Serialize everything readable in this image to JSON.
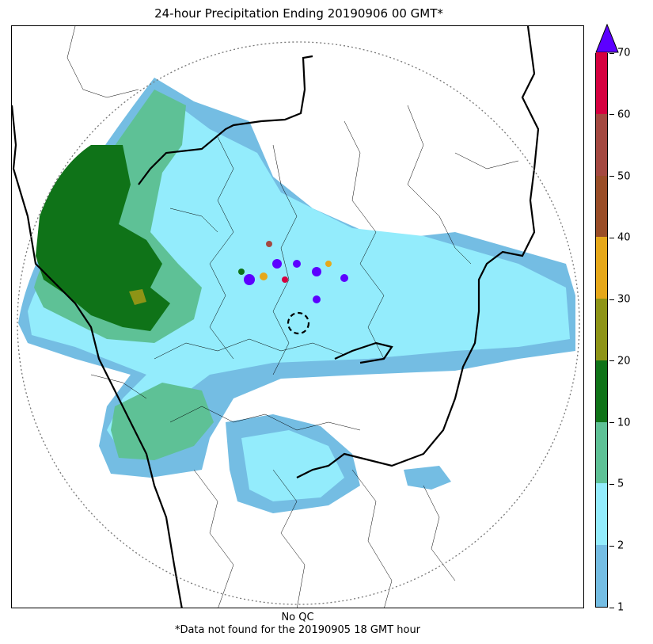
{
  "title": "24-hour Precipitation Ending 20190906 00 GMT*",
  "footer": {
    "line1": "No QC",
    "line2": "*Data not found for the 20190905 18 GMT hour"
  },
  "colorbar": {
    "ticks": [
      "1",
      "2",
      "5",
      "10",
      "20",
      "30",
      "40",
      "50",
      "60",
      "70"
    ],
    "colors": [
      "#74bde3",
      "#93ecfc",
      "#5ec196",
      "#0f7318",
      "#8e9416",
      "#e6a81a",
      "#9a4d27",
      "#a44840",
      "#d5003f"
    ],
    "overflow_color": "#5c00ff"
  }
}
